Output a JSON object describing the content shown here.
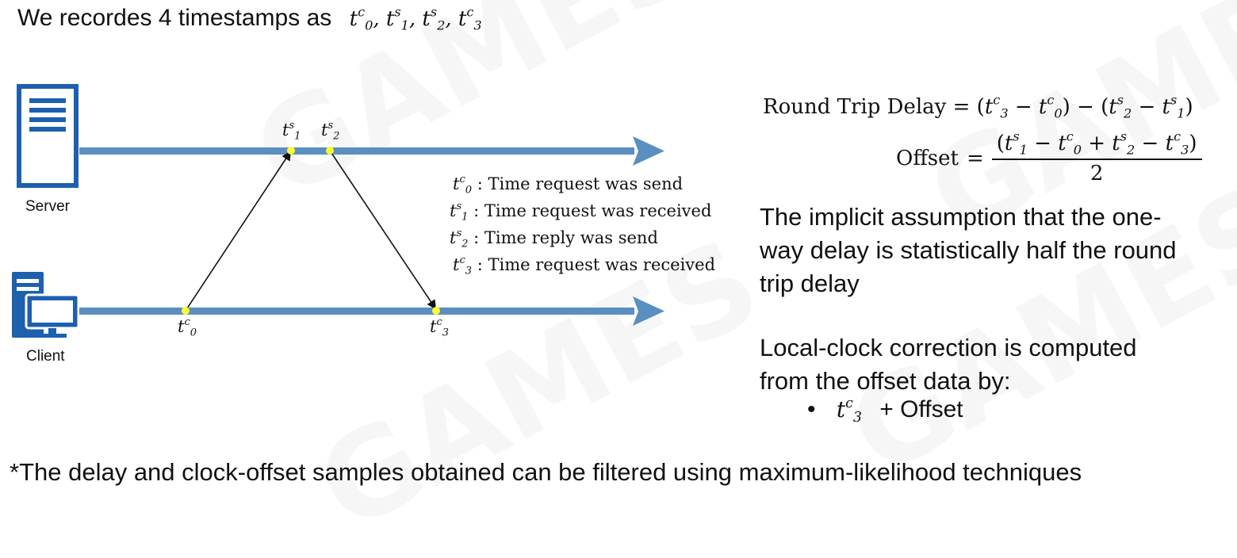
{
  "heading": {
    "prefix": "We recordes 4 timestamps as",
    "timestamps": "t0c, t1s, t2s, t3c"
  },
  "diagram": {
    "server_label": "Server",
    "client_label": "Client",
    "line_color": "#5b8ec1",
    "icon_color": "#1e5fae",
    "point_color": "#ffff33"
  },
  "legend": [
    {
      "t": "t",
      "sup": "c",
      "sub": "0",
      "text": ": Time request was send"
    },
    {
      "t": "t",
      "sup": "s",
      "sub": "1",
      "text": ": Time request was received"
    },
    {
      "t": "t",
      "sup": "s",
      "sub": "2",
      "text": ": Time reply was send"
    },
    {
      "t": "t",
      "sup": "c",
      "sub": "3",
      "text": ": Time request was received"
    }
  ],
  "formulas": {
    "round_trip_label": "Round Trip Delay",
    "offset_label": "Offset",
    "offset_denominator": "2"
  },
  "notes": {
    "assumption_line1": "The implicit assumption that the one-",
    "assumption_line2": "way delay is statistically half the round",
    "assumption_line3": "trip delay",
    "correction_line1": "Local-clock correction is computed",
    "correction_line2": "from the offset data by:",
    "bullet_suffix": "+ Offset"
  },
  "footer": "*The delay and clock-offset samples obtained can be filtered using maximum-likelihood techniques"
}
